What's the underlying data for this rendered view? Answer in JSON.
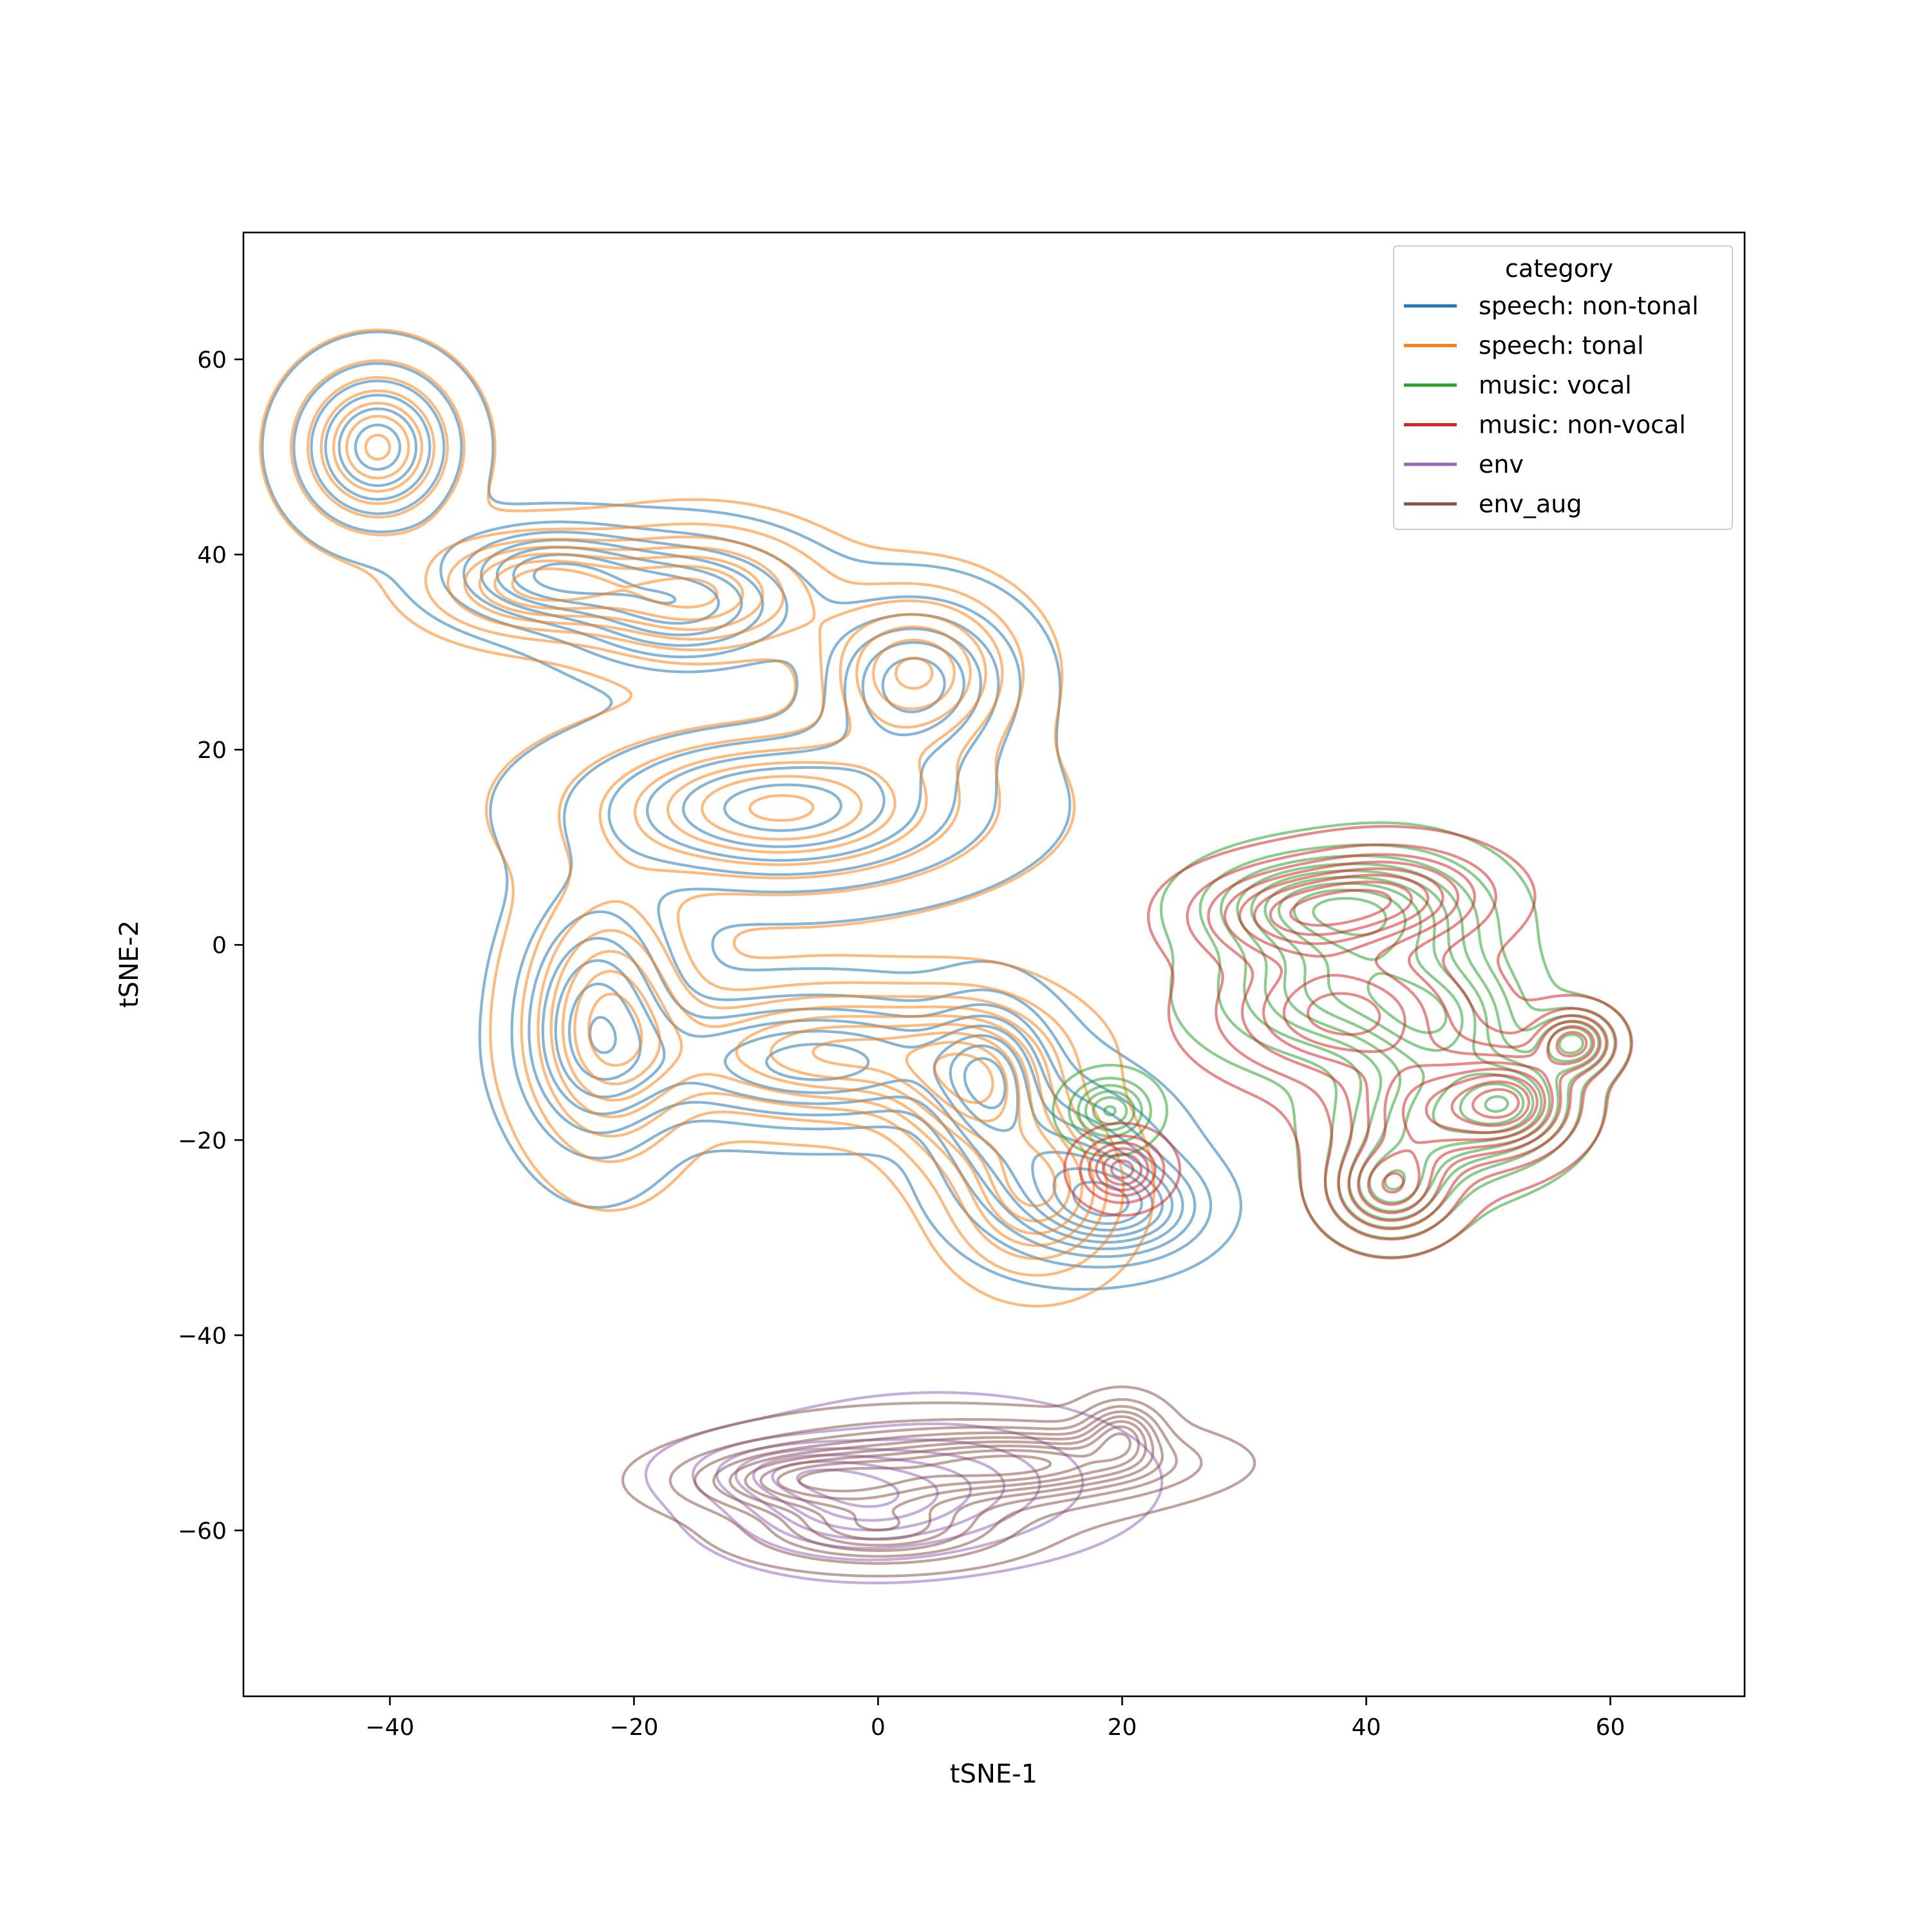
{
  "chart_data": {
    "type": "contour",
    "title": "",
    "xlabel": "tSNE-1",
    "ylabel": "tSNE-2",
    "xlim": [
      -52,
      71
    ],
    "ylim": [
      -77,
      73
    ],
    "x_ticks": [
      -40,
      -20,
      0,
      20,
      40,
      60
    ],
    "y_ticks": [
      -60,
      -40,
      -20,
      0,
      20,
      40,
      60
    ],
    "x_tick_labels": [
      "−40",
      "−20",
      "0",
      "20",
      "40",
      "60"
    ],
    "y_tick_labels": [
      "−60",
      "−40",
      "−20",
      "0",
      "20",
      "40",
      "60"
    ],
    "grid": false,
    "legend": {
      "title": "category",
      "placement": "top-right",
      "entries": [
        {
          "name": "speech: non-tonal",
          "color": "#1f77b4"
        },
        {
          "name": "speech: tonal",
          "color": "#ff7f0e"
        },
        {
          "name": "music: vocal",
          "color": "#2ca02c"
        },
        {
          "name": "music: non-vocal",
          "color": "#d62728"
        },
        {
          "name": "env",
          "color": "#9467bd"
        },
        {
          "name": "env_aug",
          "color": "#8c564b"
        }
      ]
    },
    "series": [
      {
        "name": "speech: non-tonal",
        "color": "#1f77b4",
        "levels": 9,
        "modes": [
          [
            -41,
            51,
            4,
            5
          ],
          [
            -27,
            38,
            5,
            3
          ],
          [
            -16,
            35,
            6,
            4
          ],
          [
            3,
            27,
            5,
            5
          ],
          [
            -23,
            -8,
            4,
            8
          ],
          [
            -5,
            -12,
            9,
            4
          ],
          [
            9,
            -14,
            3,
            5
          ],
          [
            15,
            -23,
            5,
            5
          ],
          [
            20,
            -27,
            4,
            3
          ],
          [
            -8,
            14,
            10,
            5
          ]
        ]
      },
      {
        "name": "speech: tonal",
        "color": "#ff7f0e",
        "levels": 9,
        "modes": [
          [
            -41,
            51,
            4,
            5
          ],
          [
            -28,
            37,
            5,
            3
          ],
          [
            -15,
            36,
            6,
            4
          ],
          [
            3,
            28,
            5,
            5
          ],
          [
            -22,
            -8,
            4,
            8
          ],
          [
            -3,
            -11,
            9,
            4
          ],
          [
            8,
            -15,
            4,
            5
          ],
          [
            13,
            -25,
            4,
            5
          ],
          [
            -8,
            14,
            10,
            5
          ]
        ]
      },
      {
        "name": "music: vocal",
        "color": "#2ca02c",
        "levels": 9,
        "modes": [
          [
            35,
            4,
            5,
            3
          ],
          [
            42,
            3,
            5,
            4
          ],
          [
            38,
            -5,
            6,
            4
          ],
          [
            46,
            -8,
            4,
            4
          ],
          [
            46,
            -18,
            5,
            4
          ],
          [
            52,
            -16,
            3,
            3
          ],
          [
            57,
            -10,
            2,
            2
          ],
          [
            42,
            -25,
            3,
            3
          ],
          [
            19,
            -17,
            2,
            2
          ]
        ]
      },
      {
        "name": "music: non-vocal",
        "color": "#d62728",
        "levels": 9,
        "modes": [
          [
            34,
            3,
            5,
            3
          ],
          [
            42,
            5,
            5,
            3
          ],
          [
            38,
            -7,
            6,
            4
          ],
          [
            46,
            -17,
            5,
            4
          ],
          [
            52,
            -16,
            3,
            3
          ],
          [
            57,
            -10,
            2,
            2
          ],
          [
            42,
            -25,
            3,
            3
          ],
          [
            20,
            -23,
            2,
            2
          ]
        ]
      },
      {
        "name": "env",
        "color": "#9467bd",
        "levels": 7,
        "modes": [
          [
            -7,
            -54,
            5,
            2
          ],
          [
            -2,
            -58,
            6,
            3
          ],
          [
            5,
            -55,
            8,
            4
          ]
        ]
      },
      {
        "name": "env_aug",
        "color": "#8c564b",
        "levels": 9,
        "modes": [
          [
            -6,
            -55,
            6,
            2
          ],
          [
            4,
            -54,
            9,
            3
          ],
          [
            14,
            -53,
            7,
            2
          ],
          [
            20,
            -50,
            2,
            2
          ],
          [
            0,
            -60,
            6,
            2
          ]
        ]
      }
    ]
  }
}
